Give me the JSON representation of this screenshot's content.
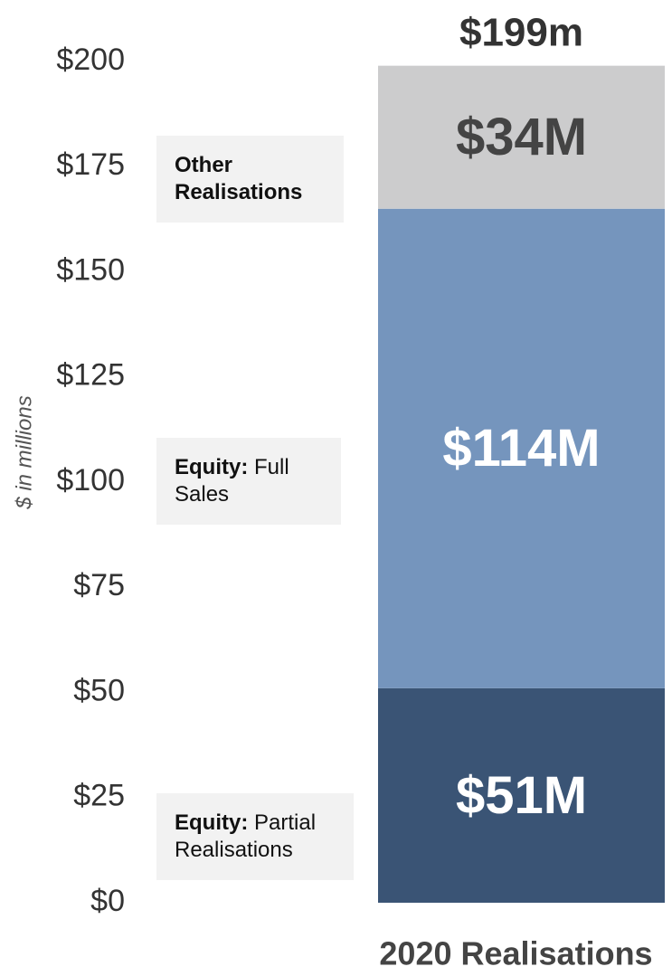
{
  "chart_data": {
    "type": "stacked_bar",
    "categories": [
      "2020 Realisations"
    ],
    "series": [
      {
        "name": "Equity: Partial Realisations",
        "color": "#3a5475",
        "label_color": "#ffffff",
        "values": [
          51
        ],
        "value_labels": [
          "$51M"
        ]
      },
      {
        "name": "Equity: Full Sales",
        "color": "#7595bd",
        "label_color": "#ffffff",
        "values": [
          114
        ],
        "value_labels": [
          "$114M"
        ]
      },
      {
        "name": "Other Realisations",
        "color": "#cccccd",
        "label_color": "#444444",
        "values": [
          34
        ],
        "value_labels": [
          "$34M"
        ]
      }
    ],
    "total": 199,
    "total_label": "$199m",
    "ylabel": "$ in millions",
    "ylim": [
      0,
      200
    ],
    "yticks": [
      {
        "value": 0,
        "label": "$0"
      },
      {
        "value": 25,
        "label": "$25"
      },
      {
        "value": 50,
        "label": "$50"
      },
      {
        "value": 75,
        "label": "$75"
      },
      {
        "value": 100,
        "label": "$100"
      },
      {
        "value": 125,
        "label": "$125"
      },
      {
        "value": 150,
        "label": "$150"
      },
      {
        "value": 175,
        "label": "$175"
      },
      {
        "value": 200,
        "label": "$200"
      }
    ],
    "grid": false
  }
}
